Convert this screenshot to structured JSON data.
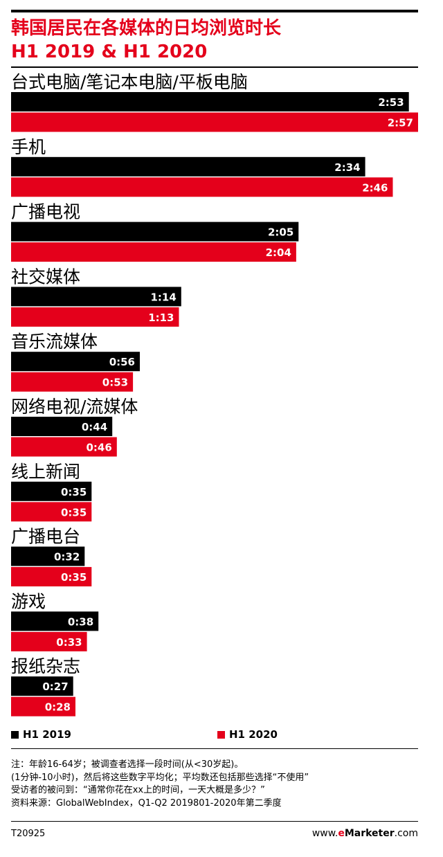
{
  "title_line1": "韩国居民在各媒体的日均浏览时长",
  "title_line2": "H1 2019 & H1 2020",
  "colors": {
    "accent": "#e4001b",
    "series_2019": "#000000",
    "series_2020": "#e4001b"
  },
  "chart_data": {
    "type": "bar",
    "orientation": "horizontal",
    "unit": "hours:minutes",
    "categories": [
      "台式电脑/笔记本电脑/平板电脑",
      "手机",
      "广播电视",
      "社交媒体",
      "音乐流媒体",
      "网络电视/流媒体",
      "线上新闻",
      "广播电台",
      "游戏",
      "报纸杂志"
    ],
    "series": [
      {
        "name": "H1 2019",
        "color": "#000000",
        "values": [
          173,
          154,
          125,
          74,
          56,
          44,
          35,
          32,
          38,
          27
        ],
        "labels": [
          "2:53",
          "2:34",
          "2:05",
          "1:14",
          "0:56",
          "0:44",
          "0:35",
          "0:32",
          "0:38",
          "0:27"
        ]
      },
      {
        "name": "H1 2020",
        "color": "#e4001b",
        "values": [
          177,
          166,
          124,
          73,
          53,
          46,
          35,
          35,
          33,
          28
        ],
        "labels": [
          "2:57",
          "2:46",
          "2:04",
          "1:13",
          "0:53",
          "0:46",
          "0:35",
          "0:35",
          "0:33",
          "0:28"
        ]
      }
    ],
    "xlim": [
      0,
      177
    ],
    "grid": false,
    "legend": "bottom"
  },
  "legend": {
    "item1": "H1 2019",
    "item2": "H1 2020"
  },
  "notes": {
    "line1": "注：年龄16-64岁；被调查者选择一段时间(从<30岁起)。",
    "line2": "(1分钟-10小时)，然后将这些数字平均化；平均数还包括那些选择“不使用”",
    "line3": "受访者的被问到：“通常你花在xx上的时间，一天大概是多少？”",
    "line4": "资料来源：GlobalWebIndex，Q1-Q2 2019801-2020年第二季度"
  },
  "footer": {
    "id": "T20925",
    "brand_pre": "www.",
    "brand_e": "e",
    "brand_name": "Marketer",
    "brand_post": ".com"
  }
}
